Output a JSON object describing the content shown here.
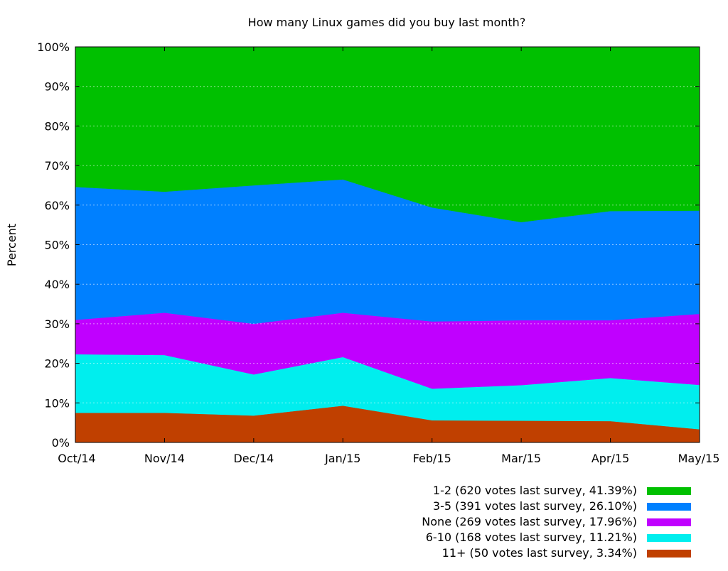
{
  "chart_data": {
    "type": "area",
    "stacked": true,
    "normalized_percent": true,
    "title": "How many Linux games did you buy last month?",
    "xlabel": "",
    "ylabel": "Percent",
    "ylim": [
      0,
      100
    ],
    "yticks": [
      "0%",
      "10%",
      "20%",
      "30%",
      "40%",
      "50%",
      "60%",
      "70%",
      "80%",
      "90%",
      "100%"
    ],
    "categories": [
      "Oct/14",
      "Nov/14",
      "Dec/14",
      "Jan/15",
      "Feb/15",
      "Mar/15",
      "Apr/15",
      "May/15"
    ],
    "grid": true,
    "legend_position": "bottom-right",
    "stack_order_bottom_to_top": [
      "11+",
      "6-10",
      "None",
      "3-5",
      "1-2"
    ],
    "series": [
      {
        "key": "11+",
        "name": "11+ (50 votes last survey, 3.34%)",
        "color": "#c04000",
        "values": [
          7.5,
          7.5,
          6.8,
          9.3,
          5.6,
          5.5,
          5.4,
          3.34
        ]
      },
      {
        "key": "6-10",
        "name": "6-10 (168 votes last survey, 11.21%)",
        "color": "#00eeee",
        "values": [
          14.8,
          14.6,
          10.4,
          12.3,
          8.0,
          9.0,
          10.9,
          11.21
        ]
      },
      {
        "key": "None",
        "name": "None (269 votes last survey, 17.96%)",
        "color": "#c000ff",
        "values": [
          8.7,
          10.7,
          12.8,
          11.2,
          17.0,
          16.4,
          14.6,
          17.96
        ]
      },
      {
        "key": "3-5",
        "name": "3-5 (391 votes last survey, 26.10%)",
        "color": "#0080ff",
        "values": [
          33.6,
          30.6,
          35.0,
          33.7,
          28.8,
          24.8,
          27.6,
          26.1
        ]
      },
      {
        "key": "1-2",
        "name": "1-2 (620 votes last survey, 41.39%)",
        "color": "#00c000",
        "values": [
          35.4,
          36.6,
          35.0,
          33.5,
          40.6,
          44.3,
          41.5,
          41.39
        ]
      }
    ],
    "legend_order": [
      "1-2",
      "3-5",
      "None",
      "6-10",
      "11+"
    ]
  }
}
